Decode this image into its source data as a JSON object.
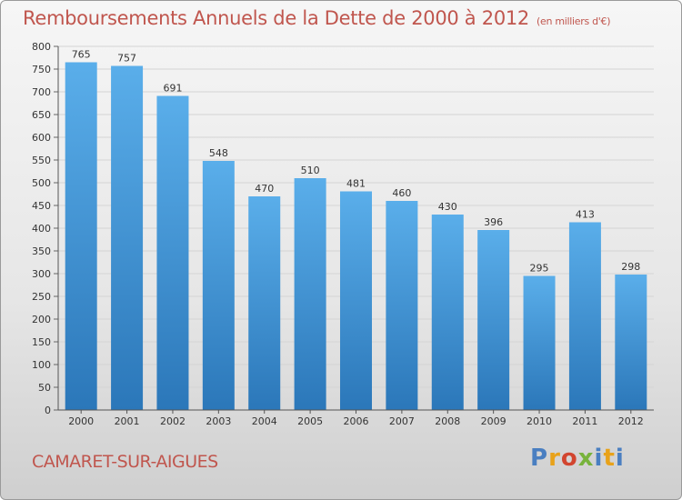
{
  "chart_data": {
    "type": "bar",
    "title": "Remboursements Annuels de la Dette de 2000 à 2012",
    "subtitle": "(en milliers d'€)",
    "categories": [
      "2000",
      "2001",
      "2002",
      "2003",
      "2004",
      "2005",
      "2006",
      "2007",
      "2008",
      "2009",
      "2010",
      "2011",
      "2012"
    ],
    "values": [
      765,
      757,
      691,
      548,
      470,
      510,
      481,
      460,
      430,
      396,
      295,
      413,
      298
    ],
    "ylim": [
      0,
      800
    ],
    "yticks": [
      0,
      50,
      100,
      150,
      200,
      250,
      300,
      350,
      400,
      450,
      500,
      550,
      600,
      650,
      700,
      750,
      800
    ],
    "grid": true,
    "colors": {
      "bar_top": "#5aaeea",
      "bar_bottom": "#2b77b9",
      "title": "#c0564e"
    }
  },
  "footer": {
    "town": "CAMARET-SUR-AIGUES",
    "logo": "Proxiti"
  }
}
